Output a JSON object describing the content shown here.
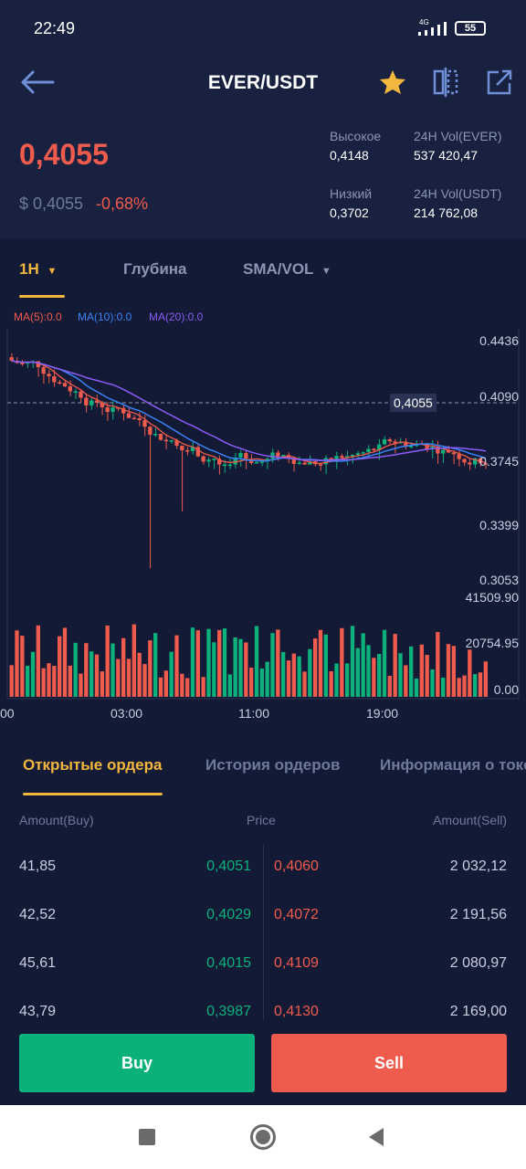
{
  "status": {
    "time": "22:49",
    "network": "4G",
    "battery": "55"
  },
  "header": {
    "title": "EVER/USDT",
    "back_icon": "arrow-left-icon",
    "star_icon": "star-icon",
    "compare_icon": "split-view-icon",
    "share_icon": "share-icon"
  },
  "ticker": {
    "price": "0,4055",
    "usd_price": "$ 0,4055",
    "change": "-0,68%",
    "high_label": "Высокое",
    "high_value": "0,4148",
    "low_label": "Низкий",
    "low_value": "0,3702",
    "vol_base_label": "24H Vol(EVER)",
    "vol_base_value": "537 420,47",
    "vol_quote_label": "24H Vol(USDT)",
    "vol_quote_value": "214 762,08"
  },
  "chart_tabs": {
    "interval": "1H",
    "depth": "Глубина",
    "indicator": "SMA/VOL"
  },
  "chart_legend": {
    "ma5": "MA(5):0.0",
    "ma10": "MA(10):0.0",
    "ma20": "MA(20):0.0"
  },
  "colors": {
    "up": "#0bb07b",
    "down": "#ef5b4c",
    "accent": "#f3b73f",
    "ma5": "#ef5b4c",
    "ma10": "#3b82f6",
    "ma20": "#8b5cf6"
  },
  "chart_axes": {
    "price_ticks": [
      "0.4436",
      "0.4090",
      "0.3745",
      "0.3399",
      "0.3053"
    ],
    "volume_ticks": [
      "41509.90",
      "20754.95",
      "0.00"
    ],
    "time_ticks": [
      "00",
      "03:00",
      "11:00",
      "19:00"
    ],
    "last_price_tag": "0,4055"
  },
  "order_tabs": {
    "open": "Открытые ордера",
    "history": "История ордеров",
    "info": "Информация о токе"
  },
  "orderbook": {
    "head_buy": "Amount(Buy)",
    "head_price": "Price",
    "head_sell": "Amount(Sell)",
    "rows": [
      {
        "buy_amount": "41,85",
        "buy_price": "0,4051",
        "sell_price": "0,4060",
        "sell_amount": "2 032,12"
      },
      {
        "buy_amount": "42,52",
        "buy_price": "0,4029",
        "sell_price": "0,4072",
        "sell_amount": "2 191,56"
      },
      {
        "buy_amount": "45,61",
        "buy_price": "0,4015",
        "sell_price": "0,4109",
        "sell_amount": "2 080,97"
      },
      {
        "buy_amount": "43,79",
        "buy_price": "0,3987",
        "sell_price": "0,4130",
        "sell_amount": "2 169,00"
      }
    ]
  },
  "actions": {
    "buy": "Buy",
    "sell": "Sell"
  }
}
